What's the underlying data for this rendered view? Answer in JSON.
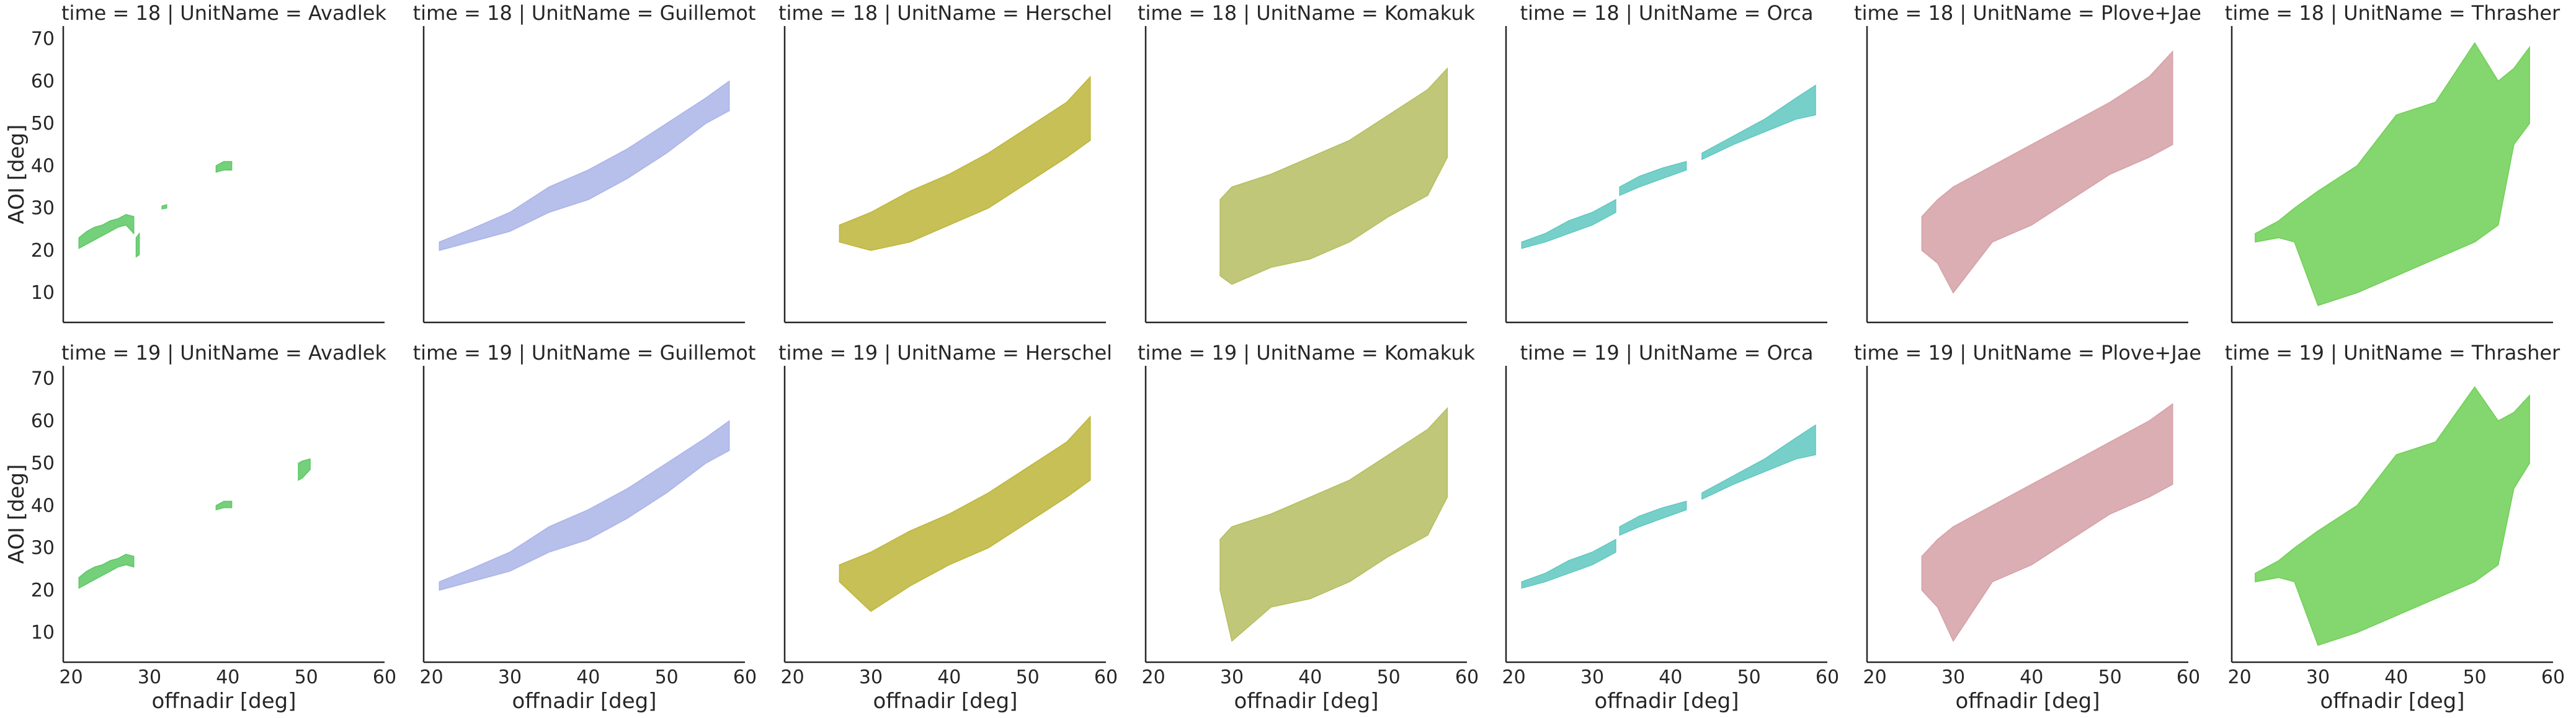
{
  "chart_data": {
    "type": "area",
    "xlabel": "offnadir [deg]",
    "ylabel": "AOI [deg]",
    "xlim": [
      19,
      60
    ],
    "ylim": [
      3,
      73
    ],
    "xticks": [
      20,
      30,
      40,
      50,
      60
    ],
    "yticks": [
      10,
      20,
      30,
      40,
      50,
      60,
      70
    ],
    "grid": false,
    "row_titles": [
      "time = 18",
      "time = 19"
    ],
    "units": [
      {
        "name": "Avadlek",
        "color": "#5cc863"
      },
      {
        "name": "Guillemot",
        "color": "#aab4e8"
      },
      {
        "name": "Herschel",
        "color": "#bdb538"
      },
      {
        "name": "Komakuk",
        "color": "#b5bd60"
      },
      {
        "name": "Orca",
        "color": "#5ec8c0"
      },
      {
        "name": "Plove+Jae",
        "color": "#d4a0a6"
      },
      {
        "name": "Thrasher",
        "color": "#6fcf55"
      }
    ],
    "panels": [
      {
        "time": 18,
        "unit": "Avadlek",
        "segments": [
          {
            "x": [
              21,
              22,
              23,
              24,
              25,
              26,
              27,
              28
            ],
            "lower": [
              20.5,
              21.5,
              22.5,
              23.5,
              24.5,
              25.5,
              26,
              24
            ],
            "upper": [
              23,
              24.5,
              25.5,
              26,
              27,
              27.5,
              28.5,
              28
            ]
          },
          {
            "x": [
              28.3,
              28.7
            ],
            "lower": [
              18.5,
              19
            ],
            "upper": [
              23,
              24
            ]
          },
          {
            "x": [
              31.6,
              32.2
            ],
            "lower": [
              29.8,
              30
            ],
            "upper": [
              30.5,
              30.8
            ]
          },
          {
            "x": [
              38.5,
              39.5,
              40.5
            ],
            "lower": [
              38.5,
              39,
              39
            ],
            "upper": [
              40,
              41,
              41
            ]
          }
        ]
      },
      {
        "time": 18,
        "unit": "Guillemot",
        "segments": [
          {
            "x": [
              21,
              25,
              30,
              35,
              40,
              45,
              50,
              55,
              58
            ],
            "lower": [
              20,
              22,
              24.5,
              29,
              32,
              37,
              43,
              50,
              53
            ],
            "upper": [
              22,
              25,
              29,
              35,
              39,
              44,
              50,
              56,
              60
            ]
          }
        ]
      },
      {
        "time": 18,
        "unit": "Herschel",
        "segments": [
          {
            "x": [
              26,
              30,
              35,
              40,
              45,
              50,
              55,
              58
            ],
            "lower": [
              22,
              20,
              22,
              26,
              30,
              36,
              42,
              46
            ],
            "upper": [
              26,
              29,
              34,
              38,
              43,
              49,
              55,
              61
            ]
          }
        ]
      },
      {
        "time": 18,
        "unit": "Komakuk",
        "segments": [
          {
            "x": [
              28.5,
              30,
              35,
              40,
              45,
              50,
              55,
              57.5
            ],
            "lower": [
              14,
              12,
              16,
              18,
              22,
              28,
              33,
              42
            ],
            "upper": [
              32,
              35,
              38,
              42,
              46,
              52,
              58,
              63
            ]
          }
        ]
      },
      {
        "time": 18,
        "unit": "Orca",
        "segments": [
          {
            "x": [
              21,
              24,
              27,
              30,
              33
            ],
            "lower": [
              20.5,
              22,
              24,
              26,
              29
            ],
            "upper": [
              22,
              24,
              27,
              29,
              32
            ]
          },
          {
            "x": [
              33.5,
              36,
              39,
              42
            ],
            "lower": [
              33,
              35,
              37,
              39
            ],
            "upper": [
              35,
              37.5,
              39.5,
              41
            ]
          },
          {
            "x": [
              44,
              48,
              52,
              56,
              58.5
            ],
            "lower": [
              41.5,
              45,
              48,
              51,
              52
            ],
            "upper": [
              43,
              47,
              51,
              56,
              59
            ]
          }
        ]
      },
      {
        "time": 18,
        "unit": "Plove+Jae",
        "segments": [
          {
            "x": [
              26,
              28,
              30,
              35,
              40,
              45,
              50,
              55,
              58
            ],
            "lower": [
              20,
              17,
              10,
              22,
              26,
              32,
              38,
              42,
              45
            ],
            "upper": [
              28,
              32,
              35,
              40,
              45,
              50,
              55,
              61,
              67
            ]
          }
        ]
      },
      {
        "time": 18,
        "unit": "Thrasher",
        "segments": [
          {
            "x": [
              22,
              25,
              27,
              30,
              35,
              40,
              45,
              50,
              53,
              55,
              57
            ],
            "lower": [
              22,
              23,
              22,
              7,
              10,
              14,
              18,
              22,
              26,
              45,
              50
            ],
            "upper": [
              24,
              27,
              30,
              34,
              40,
              52,
              55,
              69,
              60,
              63,
              68
            ]
          }
        ]
      },
      {
        "time": 19,
        "unit": "Avadlek",
        "segments": [
          {
            "x": [
              21,
              22,
              23,
              24,
              25,
              26,
              27,
              28
            ],
            "lower": [
              20.5,
              21.5,
              22.5,
              23.5,
              24.5,
              25.5,
              26,
              25.5
            ],
            "upper": [
              23,
              24.5,
              25.5,
              26,
              27,
              27.5,
              28.5,
              28
            ]
          },
          {
            "x": [
              38.5,
              39.5,
              40.5
            ],
            "lower": [
              39,
              39.5,
              39.5
            ],
            "upper": [
              40,
              41,
              41
            ]
          },
          {
            "x": [
              49,
              49.5,
              50.5
            ],
            "lower": [
              46,
              46.5,
              48.5
            ],
            "upper": [
              50,
              50.5,
              51
            ]
          }
        ]
      },
      {
        "time": 19,
        "unit": "Guillemot",
        "segments": [
          {
            "x": [
              21,
              25,
              30,
              35,
              40,
              45,
              50,
              55,
              58
            ],
            "lower": [
              20,
              22,
              24.5,
              29,
              32,
              37,
              43,
              50,
              53
            ],
            "upper": [
              22,
              25,
              29,
              35,
              39,
              44,
              50,
              56,
              60
            ]
          }
        ]
      },
      {
        "time": 19,
        "unit": "Herschel",
        "segments": [
          {
            "x": [
              26,
              30,
              35,
              40,
              45,
              50,
              55,
              58
            ],
            "lower": [
              22,
              15,
              21,
              26,
              30,
              36,
              42,
              46
            ],
            "upper": [
              26,
              29,
              34,
              38,
              43,
              49,
              55,
              61
            ]
          }
        ]
      },
      {
        "time": 19,
        "unit": "Komakuk",
        "segments": [
          {
            "x": [
              28.5,
              30,
              35,
              40,
              45,
              50,
              55,
              57.5
            ],
            "lower": [
              20,
              8,
              16,
              18,
              22,
              28,
              33,
              42
            ],
            "upper": [
              32,
              35,
              38,
              42,
              46,
              52,
              58,
              63
            ]
          }
        ]
      },
      {
        "time": 19,
        "unit": "Orca",
        "segments": [
          {
            "x": [
              21,
              24,
              27,
              30,
              33
            ],
            "lower": [
              20.5,
              22,
              24,
              26,
              29
            ],
            "upper": [
              22,
              24,
              27,
              29,
              32
            ]
          },
          {
            "x": [
              33.5,
              36,
              39,
              42
            ],
            "lower": [
              33,
              35,
              37,
              39
            ],
            "upper": [
              35,
              37.5,
              39.5,
              41
            ]
          },
          {
            "x": [
              44,
              48,
              52,
              56,
              58.5
            ],
            "lower": [
              41.5,
              45,
              48,
              51,
              52
            ],
            "upper": [
              43,
              47,
              51,
              56,
              59
            ]
          }
        ]
      },
      {
        "time": 19,
        "unit": "Plove+Jae",
        "segments": [
          {
            "x": [
              26,
              28,
              30,
              35,
              40,
              45,
              50,
              55,
              58
            ],
            "lower": [
              20,
              16,
              8,
              22,
              26,
              32,
              38,
              42,
              45
            ],
            "upper": [
              28,
              32,
              35,
              40,
              45,
              50,
              55,
              60,
              64
            ]
          }
        ]
      },
      {
        "time": 19,
        "unit": "Thrasher",
        "segments": [
          {
            "x": [
              22,
              25,
              27,
              30,
              35,
              40,
              45,
              50,
              53,
              55,
              57
            ],
            "lower": [
              22,
              23,
              22,
              7,
              10,
              14,
              18,
              22,
              26,
              44,
              50
            ],
            "upper": [
              24,
              27,
              30,
              34,
              40,
              52,
              55,
              68,
              60,
              62,
              66
            ]
          }
        ]
      }
    ]
  }
}
